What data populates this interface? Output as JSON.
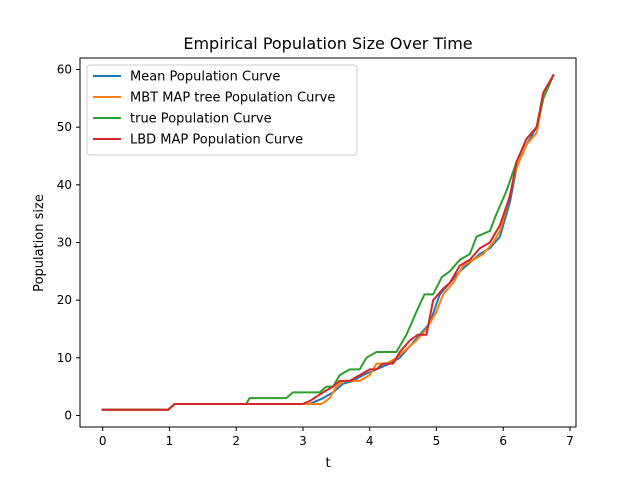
{
  "chart_data": {
    "type": "line",
    "title": "Empirical Population Size Over Time",
    "xlabel": "t",
    "ylabel": "Population size",
    "xlim": [
      -0.34,
      7.09
    ],
    "ylim": [
      -2,
      62
    ],
    "xticks": [
      0,
      1,
      2,
      3,
      4,
      5,
      6,
      7
    ],
    "yticks": [
      0,
      10,
      20,
      30,
      40,
      50,
      60
    ],
    "grid": false,
    "legend_position": "upper-left",
    "series": [
      {
        "name": "Mean Population Curve",
        "color": "#1f77b4",
        "x": [
          0,
          0.5,
          0.98,
          1.08,
          1.5,
          2.0,
          2.5,
          3.0,
          3.1,
          3.3,
          3.45,
          3.6,
          3.75,
          3.9,
          4.0,
          4.1,
          4.2,
          4.3,
          4.45,
          4.6,
          4.75,
          4.9,
          5.05,
          5.2,
          5.35,
          5.5,
          5.65,
          5.8,
          5.95,
          6.1,
          6.2,
          6.35,
          6.5,
          6.6,
          6.75
        ],
        "y": [
          1,
          1,
          1,
          2,
          2,
          2,
          2,
          2,
          2,
          3,
          4,
          5.5,
          6,
          7,
          7.5,
          8,
          8.5,
          9,
          10,
          12,
          14,
          16,
          21,
          23,
          25,
          26.5,
          28,
          29,
          31,
          37,
          43,
          47,
          50,
          55,
          59
        ]
      },
      {
        "name": "MBT MAP tree Population Curve",
        "color": "#ff7f0e",
        "x": [
          0,
          0.5,
          0.98,
          1.08,
          1.5,
          2.0,
          2.5,
          3.0,
          3.28,
          3.4,
          3.5,
          3.6,
          3.75,
          3.85,
          4.0,
          4.1,
          4.25,
          4.4,
          4.5,
          4.7,
          4.85,
          5.0,
          5.1,
          5.25,
          5.4,
          5.55,
          5.7,
          5.85,
          5.95,
          6.05,
          6.2,
          6.35,
          6.5,
          6.6,
          6.75
        ],
        "y": [
          1,
          1,
          1,
          2,
          2,
          2,
          2,
          2,
          2,
          3,
          5,
          6,
          6,
          6,
          7,
          9,
          9,
          10,
          11,
          13,
          15,
          18,
          21,
          23,
          26,
          27,
          28,
          30,
          32,
          36,
          43,
          47,
          49,
          55,
          59
        ]
      },
      {
        "name": "true Population Curve",
        "color": "#2ca02c",
        "x": [
          0,
          0.5,
          0.98,
          1.08,
          1.5,
          2.0,
          2.15,
          2.2,
          2.5,
          2.75,
          2.85,
          3.0,
          3.25,
          3.35,
          3.45,
          3.55,
          3.7,
          3.85,
          3.95,
          4.1,
          4.25,
          4.4,
          4.55,
          4.7,
          4.82,
          4.95,
          5.08,
          5.2,
          5.35,
          5.5,
          5.6,
          5.8,
          5.9,
          6.05,
          6.2,
          6.35,
          6.5,
          6.6,
          6.75
        ],
        "y": [
          1,
          1,
          1,
          2,
          2,
          2,
          2,
          3,
          3,
          3,
          4,
          4,
          4,
          5,
          5,
          7,
          8,
          8,
          10,
          11,
          11,
          11,
          14,
          18,
          21,
          21,
          24,
          25,
          27,
          28,
          31,
          32,
          35,
          39,
          44,
          48,
          50,
          55,
          59
        ]
      },
      {
        "name": "LBD MAP Population Curve",
        "color": "#d62728",
        "x": [
          0,
          0.5,
          0.98,
          1.08,
          1.5,
          2.0,
          2.5,
          3.0,
          3.1,
          3.3,
          3.45,
          3.55,
          3.7,
          3.85,
          4.0,
          4.1,
          4.2,
          4.35,
          4.45,
          4.6,
          4.72,
          4.85,
          4.95,
          5.1,
          5.2,
          5.35,
          5.5,
          5.65,
          5.8,
          5.95,
          6.1,
          6.2,
          6.35,
          6.5,
          6.6,
          6.75
        ],
        "y": [
          1,
          1,
          1,
          2,
          2,
          2,
          2,
          2,
          2.5,
          4,
          5,
          6,
          6,
          7,
          8,
          8,
          9,
          9,
          11,
          13,
          14,
          14,
          20,
          22,
          23,
          26,
          27,
          29,
          30,
          33,
          38,
          44,
          48,
          50,
          56,
          59
        ]
      }
    ]
  }
}
